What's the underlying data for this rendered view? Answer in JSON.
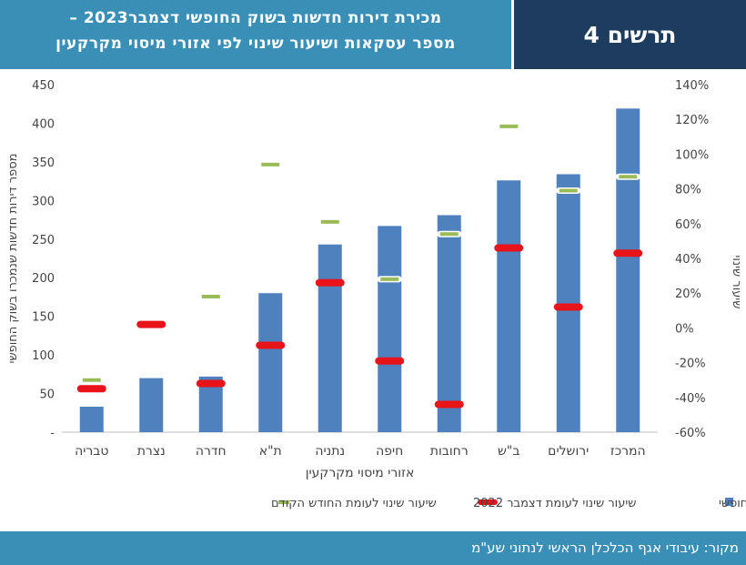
{
  "header": {
    "title_line1": "מכירת דירות חדשות בשוק החופשי דצמבר2023 –",
    "title_line2": "מספר עסקאות ושיעור שינוי לפי אזורי מיסוי מקרקעין",
    "figure_label": "תרשים 4"
  },
  "footer": {
    "source": "מקור: עיבודי אגף הכלכלן הראשי לנתוני שע\"מ"
  },
  "colors": {
    "header_bg": "#3a8fb7",
    "figure_label_bg": "#1e3d5e",
    "bar": "#4e81bd",
    "dec2022_marker": "#e8141a",
    "prev_month_marker": "#9bbb59"
  },
  "chart_data": {
    "type": "bar",
    "categories": [
      "המרכז",
      "ירושלים",
      "ב\"ש",
      "רחובות",
      "חיפה",
      "נתניה",
      "ת\"א",
      "חדרה",
      "נצרת",
      "טבריה"
    ],
    "xlabel": "אזורי מיסוי מקרקעין",
    "ylabel": "מספר דירות חדשות שנמכרו בשוק החופשי",
    "ylabel_right": "שיעור שינוי",
    "ylim": [
      0,
      450
    ],
    "yticks": [
      0,
      50,
      100,
      150,
      200,
      250,
      300,
      350,
      400,
      450
    ],
    "ytick_labels": [
      "-",
      "50",
      "100",
      "150",
      "200",
      "250",
      "300",
      "350",
      "400",
      "450"
    ],
    "ylim_right": [
      -60,
      140
    ],
    "yticks_right": [
      -60,
      -40,
      -20,
      0,
      20,
      40,
      60,
      80,
      100,
      120,
      140
    ],
    "ytick_labels_right": [
      "-60%",
      "-40%",
      "-20%",
      "0%",
      "20%",
      "40%",
      "60%",
      "80%",
      "100%",
      "120%",
      "140%"
    ],
    "series": [
      {
        "name": "מספר דירות חדשות שנרכשו בשוק החופשי",
        "kind": "bar",
        "axis": "left",
        "values": [
          419,
          334,
          326,
          281,
          267,
          243,
          180,
          72,
          70,
          33
        ]
      },
      {
        "name": "שיעור שינוי לעומת דצמבר 2022",
        "kind": "marker",
        "axis": "right",
        "values": [
          43,
          12,
          46,
          -44,
          -19,
          26,
          -10,
          -32,
          2,
          -35
        ]
      },
      {
        "name": "שיעור שינוי לעומת החודש הקודם",
        "kind": "marker",
        "axis": "right",
        "values": [
          87,
          79,
          116,
          54,
          28,
          61,
          94,
          18,
          null,
          -30
        ]
      }
    ],
    "legend_position": "bottom"
  }
}
